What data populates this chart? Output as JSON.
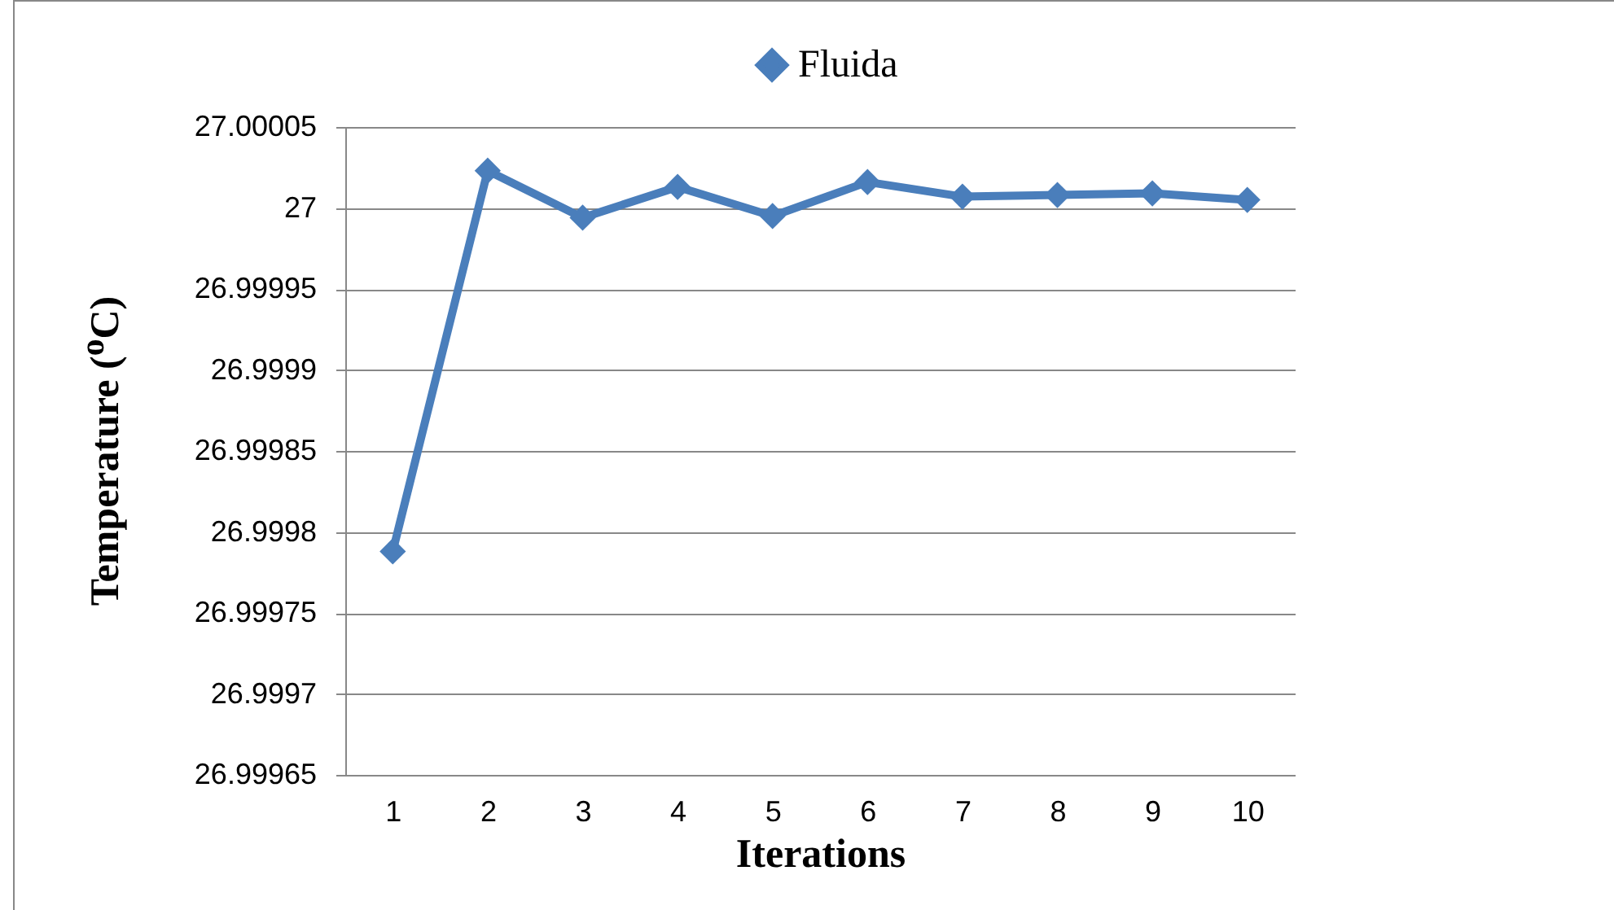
{
  "chart_data": {
    "type": "line",
    "xlabel": "Iterations",
    "ylabel": "Temperature ($^{o}$C)",
    "categories": [
      "1",
      "2",
      "3",
      "4",
      "5",
      "6",
      "7",
      "8",
      "9",
      "10"
    ],
    "series": [
      {
        "name": "Fluida",
        "color": "#4a7ebb",
        "values": [
          26.999788,
          27.000023,
          26.999994,
          27.000013,
          26.999995,
          27.000016,
          27.000007,
          27.000008,
          27.000009,
          27.000005
        ]
      }
    ],
    "ylim": [
      26.99965,
      27.00005
    ],
    "yticks": [
      26.99965,
      26.9997,
      26.99975,
      26.9998,
      26.99985,
      26.9999,
      26.99995,
      27,
      27.00005
    ],
    "grid": "y",
    "legend": "top",
    "marker": "diamond",
    "line_style": "solid"
  }
}
